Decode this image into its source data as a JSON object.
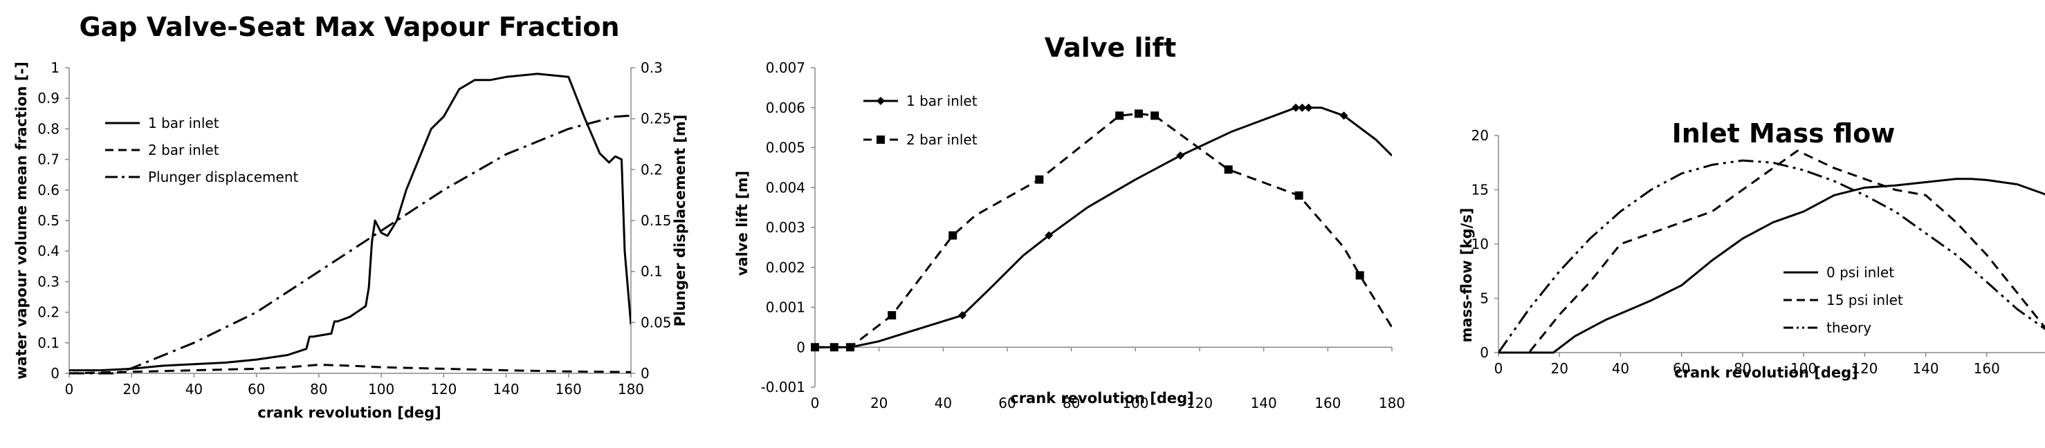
{
  "charts": [
    {
      "id": "vapour",
      "title": "Gap Valve-Seat Max Vapour Fraction",
      "xlabel": "crank revolution [deg]",
      "ylabel": "water vapour volume mean fraction [-]",
      "y2label": "Plunger displacement [m]",
      "xticks": [
        "0",
        "20",
        "40",
        "60",
        "80",
        "100",
        "120",
        "140",
        "160",
        "180"
      ],
      "yticks": [
        "0",
        "0.1",
        "0.2",
        "0.3",
        "0.4",
        "0.5",
        "0.6",
        "0.7",
        "0.8",
        "0.9",
        "1"
      ],
      "y2ticks": [
        "0",
        "0.05",
        "0.1",
        "0.15",
        "0.2",
        "0.25",
        "0.3"
      ],
      "legend": [
        "1 bar inlet",
        "2 bar inlet",
        "Plunger displacement"
      ]
    },
    {
      "id": "lift",
      "title": "Valve lift",
      "xlabel": "crank revolution [deg]",
      "ylabel": "valve lift [m]",
      "xticks": [
        "0",
        "20",
        "40",
        "60",
        "80",
        "100",
        "120",
        "140",
        "160",
        "180"
      ],
      "yticks": [
        "-0.001",
        "0",
        "0.001",
        "0.002",
        "0.003",
        "0.004",
        "0.005",
        "0.006",
        "0.007"
      ],
      "legend": [
        "1 bar inlet",
        "2 bar inlet"
      ]
    },
    {
      "id": "massflow",
      "title": "Inlet Mass flow",
      "xlabel": "crank revolution [deg]",
      "ylabel": "mass-flow [kg/s]",
      "xticks": [
        "0",
        "20",
        "40",
        "60",
        "80",
        "100",
        "120",
        "140",
        "160"
      ],
      "yticks": [
        "0",
        "5",
        "10",
        "15",
        "20"
      ],
      "legend": [
        "0 psi inlet",
        "15 psi inlet",
        "theory"
      ]
    }
  ],
  "chart_data": [
    {
      "type": "line",
      "title": "Gap Valve-Seat Max Vapour Fraction",
      "xlabel": "crank revolution [deg]",
      "ylabel": "water vapour volume mean fraction [-]",
      "y2label": "Plunger displacement [m]",
      "xlim": [
        0,
        180
      ],
      "ylim": [
        0,
        1
      ],
      "y2lim": [
        0,
        0.3
      ],
      "grid": false,
      "legend_position": "top-left",
      "series": [
        {
          "name": "1 bar inlet",
          "axis": "left",
          "style": "solid",
          "x": [
            0,
            10,
            20,
            30,
            40,
            50,
            60,
            70,
            76,
            77,
            78,
            84,
            85,
            86,
            90,
            95,
            96,
            97,
            98,
            100,
            102,
            105,
            108,
            112,
            116,
            120,
            125,
            130,
            135,
            140,
            150,
            160,
            165,
            170,
            173,
            175,
            177,
            178,
            180
          ],
          "y": [
            0.01,
            0.01,
            0.015,
            0.025,
            0.03,
            0.035,
            0.045,
            0.06,
            0.08,
            0.12,
            0.12,
            0.13,
            0.17,
            0.17,
            0.185,
            0.22,
            0.28,
            0.43,
            0.5,
            0.46,
            0.45,
            0.5,
            0.6,
            0.7,
            0.8,
            0.84,
            0.93,
            0.96,
            0.96,
            0.97,
            0.98,
            0.97,
            0.84,
            0.72,
            0.69,
            0.71,
            0.7,
            0.4,
            0.16
          ]
        },
        {
          "name": "2 bar inlet",
          "axis": "left",
          "style": "dashed",
          "x": [
            0,
            20,
            40,
            60,
            70,
            80,
            90,
            100,
            120,
            140,
            160,
            180
          ],
          "y": [
            0,
            0.005,
            0.01,
            0.015,
            0.02,
            0.028,
            0.025,
            0.02,
            0.015,
            0.01,
            0.006,
            0.004
          ]
        },
        {
          "name": "Plunger displacement",
          "axis": "right",
          "style": "dash-dot",
          "x": [
            0,
            15,
            20,
            40,
            60,
            80,
            90,
            100,
            120,
            140,
            160,
            175,
            180
          ],
          "y": [
            0,
            0,
            0.005,
            0.03,
            0.06,
            0.1,
            0.12,
            0.14,
            0.18,
            0.215,
            0.24,
            0.252,
            0.253
          ]
        }
      ]
    },
    {
      "type": "line",
      "title": "Valve lift",
      "xlabel": "crank revolution [deg]",
      "ylabel": "valve lift [m]",
      "xlim": [
        0,
        180
      ],
      "ylim": [
        -0.001,
        0.007
      ],
      "grid": false,
      "legend_position": "top-left",
      "series": [
        {
          "name": "1 bar inlet",
          "style": "solid",
          "marker": "diamond",
          "x": [
            0,
            6,
            11,
            20,
            30,
            46,
            55,
            65,
            73,
            85,
            100,
            114,
            130,
            150,
            152,
            154,
            158,
            165,
            175,
            180
          ],
          "y": [
            0,
            0,
            0,
            0.00015,
            0.0004,
            0.0008,
            0.0015,
            0.0023,
            0.0028,
            0.0035,
            0.0042,
            0.0048,
            0.0054,
            0.006,
            0.006,
            0.006,
            0.006,
            0.0058,
            0.0052,
            0.0048
          ],
          "markers_x": [
            0,
            6,
            11,
            46,
            73,
            114,
            150,
            152,
            154,
            165
          ],
          "markers_y": [
            0,
            0,
            0,
            0.0008,
            0.0028,
            0.0048,
            0.006,
            0.006,
            0.006,
            0.0058
          ]
        },
        {
          "name": "2 bar inlet",
          "style": "dashed",
          "marker": "square",
          "x": [
            0,
            6,
            11,
            24,
            43,
            50,
            70,
            95,
            101,
            106,
            129,
            151,
            165,
            170,
            180
          ],
          "y": [
            0,
            0,
            0,
            0.0008,
            0.0028,
            0.0033,
            0.0042,
            0.0058,
            0.00585,
            0.0058,
            0.00445,
            0.0038,
            0.0025,
            0.0018,
            0.0005
          ],
          "markers_x": [
            0,
            6,
            11,
            24,
            43,
            70,
            95,
            101,
            106,
            129,
            151,
            170
          ],
          "markers_y": [
            0,
            0,
            0,
            0.0008,
            0.0028,
            0.0042,
            0.0058,
            0.00585,
            0.0058,
            0.00445,
            0.0038,
            0.0018
          ]
        }
      ]
    },
    {
      "type": "line",
      "title": "Inlet Mass flow",
      "xlabel": "crank revolution [deg]",
      "ylabel": "mass-flow [kg/s]",
      "xlim": [
        0,
        180
      ],
      "ylim": [
        0,
        20
      ],
      "grid": false,
      "legend_position": "bottom-right",
      "series": [
        {
          "name": "0 psi inlet",
          "style": "solid",
          "x": [
            0,
            18,
            25,
            35,
            45,
            50,
            55,
            60,
            70,
            80,
            90,
            100,
            110,
            120,
            130,
            140,
            150,
            155,
            160,
            170,
            180
          ],
          "y": [
            0,
            0,
            1.5,
            3,
            4.2,
            4.8,
            5.5,
            6.2,
            8.5,
            10.5,
            12,
            13,
            14.5,
            15.2,
            15.4,
            15.7,
            16,
            16,
            15.9,
            15.5,
            14.5
          ]
        },
        {
          "name": "15 psi inlet",
          "style": "dashed",
          "x": [
            0,
            10,
            20,
            30,
            40,
            50,
            60,
            70,
            80,
            90,
            98,
            110,
            120,
            130,
            140,
            150,
            160,
            170,
            180
          ],
          "y": [
            0,
            0,
            3.5,
            6.5,
            10,
            11,
            12,
            13,
            15,
            17,
            18.6,
            17,
            16,
            15,
            14.5,
            12,
            9,
            5.5,
            2
          ]
        },
        {
          "name": "theory",
          "style": "dash-dot-dot",
          "x": [
            0,
            10,
            20,
            30,
            40,
            50,
            60,
            70,
            80,
            90,
            100,
            110,
            120,
            130,
            140,
            150,
            160,
            170,
            180
          ],
          "y": [
            0,
            4,
            7.5,
            10.5,
            13,
            15,
            16.5,
            17.3,
            17.7,
            17.5,
            16.8,
            15.8,
            14.5,
            13,
            11,
            9,
            6.5,
            4,
            2
          ]
        }
      ]
    }
  ]
}
